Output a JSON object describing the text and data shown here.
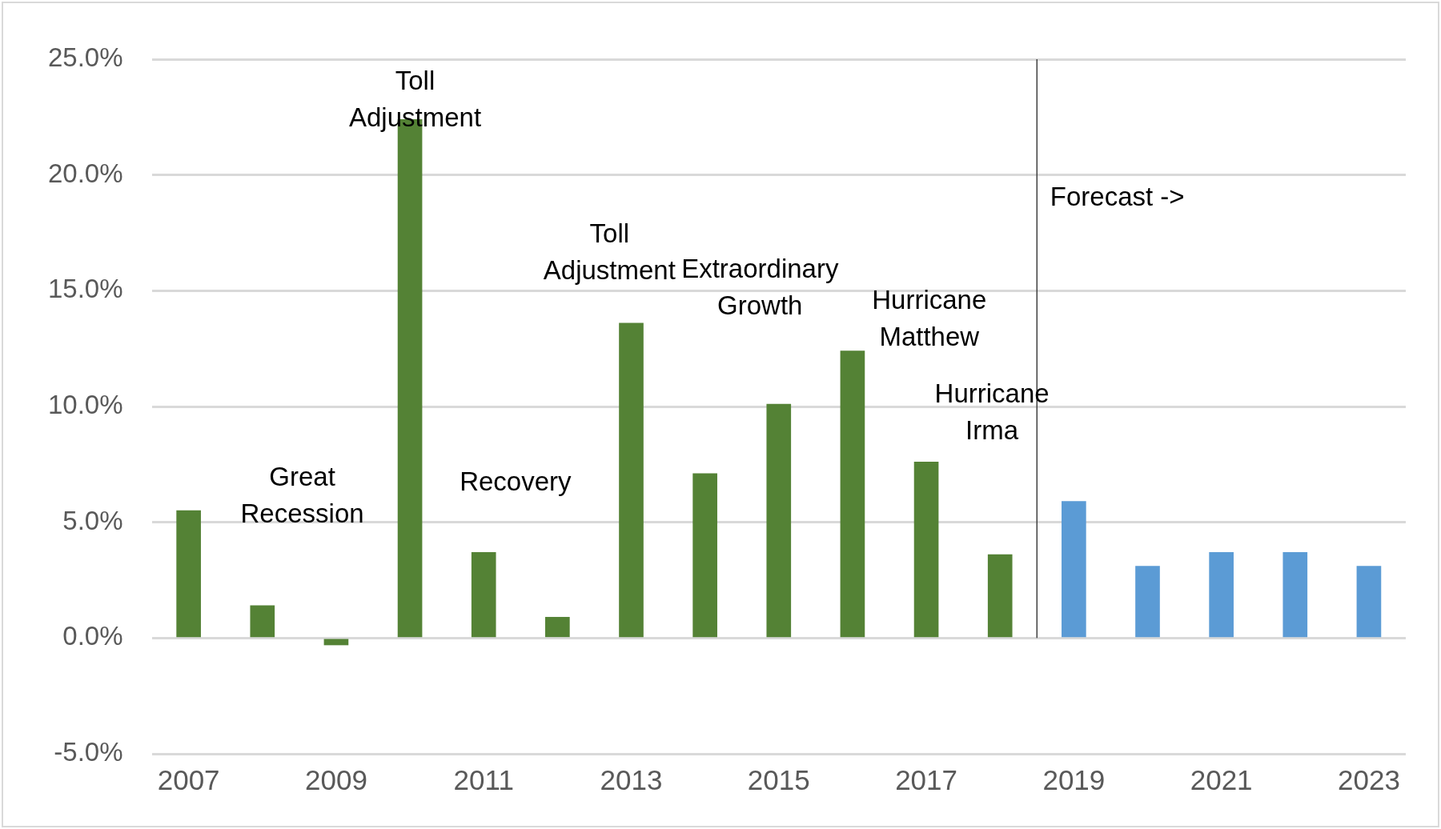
{
  "chart_data": {
    "type": "bar",
    "x": [
      2007,
      2008,
      2009,
      2010,
      2011,
      2012,
      2013,
      2014,
      2015,
      2016,
      2017,
      2018,
      2019,
      2020,
      2021,
      2022,
      2023
    ],
    "values": [
      5.5,
      1.4,
      -0.3,
      22.4,
      3.7,
      0.9,
      13.6,
      7.1,
      10.1,
      12.4,
      7.6,
      3.6,
      5.9,
      3.1,
      3.7,
      3.7,
      3.1
    ],
    "colors": [
      "#548235",
      "#548235",
      "#548235",
      "#548235",
      "#548235",
      "#548235",
      "#548235",
      "#548235",
      "#548235",
      "#548235",
      "#548235",
      "#548235",
      "#5b9bd5",
      "#5b9bd5",
      "#5b9bd5",
      "#5b9bd5",
      "#5b9bd5"
    ],
    "xlim": [
      2006.5,
      2023.5
    ],
    "xticks": [
      2007,
      2009,
      2011,
      2013,
      2015,
      2017,
      2019,
      2021,
      2023
    ],
    "ylim": [
      -5,
      25
    ],
    "yticks": [
      {
        "value": -5,
        "label": "-5.0%"
      },
      {
        "value": 0,
        "label": "0.0%"
      },
      {
        "value": 5,
        "label": "5.0%"
      },
      {
        "value": 10,
        "label": "10.0%"
      },
      {
        "value": 15,
        "label": "15.0%"
      },
      {
        "value": 20,
        "label": "20.0%"
      },
      {
        "value": 25,
        "label": "25.0%"
      }
    ],
    "grid": "y",
    "legend": false,
    "ref_lines": [
      {
        "axis": "x",
        "value": 2018.5,
        "color": "#404040"
      }
    ],
    "annotations": [
      "Toll\nAdjustment",
      "Great\nRecession",
      "Recovery",
      "Toll\nAdjustment",
      "Extraordinary\nGrowth",
      "Hurricane\nMatthew",
      "Hurricane\nIrma",
      "Forecast ->"
    ]
  }
}
